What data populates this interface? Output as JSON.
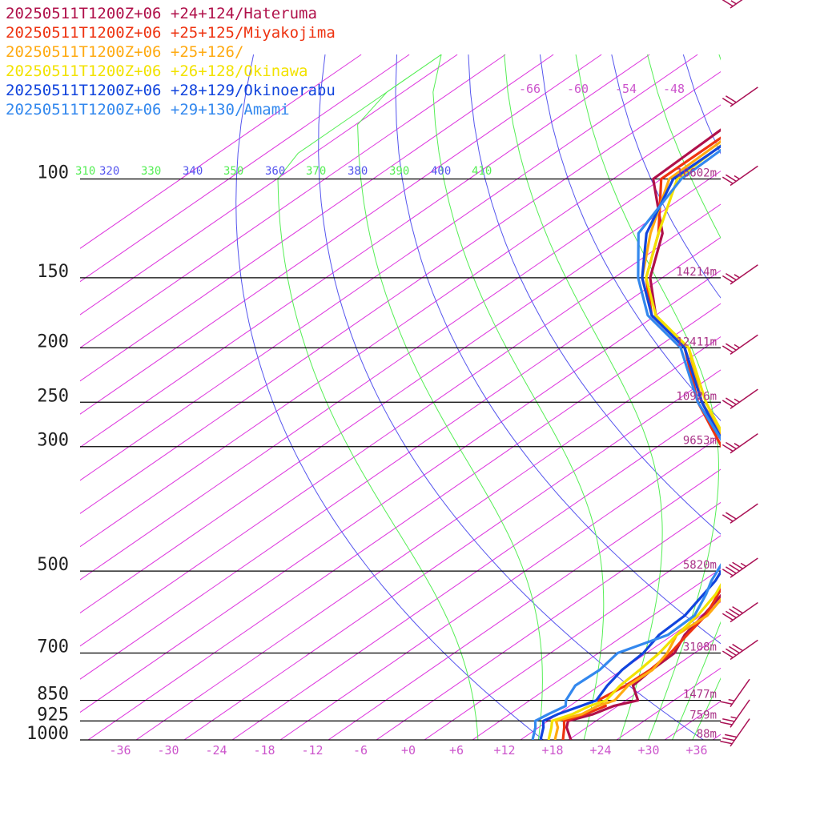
{
  "chart_data": {
    "type": "line",
    "title": "",
    "xlabel": "",
    "ylabel": "",
    "legend_placement": "top-left",
    "x_unit": "temperature (°C), skewed",
    "y_unit": "pressure (hPa), log scale",
    "pressure_levels": [
      100,
      150,
      200,
      250,
      300,
      500,
      700,
      850,
      925,
      1000
    ],
    "pressure_labels": [
      "100",
      "150",
      "200",
      "250",
      "300",
      "500",
      "700",
      "850",
      "925",
      "1000"
    ],
    "height_labels": [
      {
        "p": 100,
        "text": "16602m"
      },
      {
        "p": 150,
        "text": "14214m"
      },
      {
        "p": 200,
        "text": "12411m"
      },
      {
        "p": 250,
        "text": "10926m"
      },
      {
        "p": 300,
        "text": "9653m"
      },
      {
        "p": 500,
        "text": "5820m"
      },
      {
        "p": 700,
        "text": "3108m"
      },
      {
        "p": 850,
        "text": "1477m"
      },
      {
        "p": 925,
        "text": "759m"
      },
      {
        "p": 1000,
        "text": "88m"
      }
    ],
    "x_ticks": [
      -36,
      -30,
      -24,
      -18,
      -12,
      -6,
      0,
      6,
      12,
      18,
      24,
      30,
      36
    ],
    "x_tick_labels": [
      "-36",
      "-30",
      "-24",
      "-18",
      "-12",
      "-6",
      "+0",
      "+6",
      "+12",
      "+18",
      "+24",
      "+30",
      "+36"
    ],
    "upper_temp_labels": [
      "-66",
      "-60",
      "-54",
      "-48"
    ],
    "theta_labels": [
      "310",
      "320",
      "330",
      "340",
      "350",
      "360",
      "370",
      "380",
      "390",
      "400",
      "410"
    ],
    "colors": {
      "isotherm": "#dd33dd",
      "dry_adiabat": "#5555ee",
      "moist_adiabat": "#55ee55",
      "isobar": "#000000"
    },
    "series": [
      {
        "name": "20250511T1200Z+06 +24+124/Hateruma",
        "color": "#b0104a",
        "points": [
          [
            1000,
            20.3
          ],
          [
            950,
            17.5
          ],
          [
            925,
            16.5
          ],
          [
            900,
            18.4
          ],
          [
            870,
            19.5
          ],
          [
            850,
            21.5
          ],
          [
            800,
            18.2
          ],
          [
            750,
            17.7
          ],
          [
            700,
            17.5
          ],
          [
            650,
            15.5
          ],
          [
            600,
            14.3
          ],
          [
            550,
            12.8
          ],
          [
            520,
            11.2
          ],
          [
            500,
            10.5
          ],
          [
            450,
            7.0
          ],
          [
            400,
            2.0
          ],
          [
            350,
            -6.0
          ],
          [
            300,
            -13.5
          ],
          [
            250,
            -24.5
          ],
          [
            200,
            -36.5
          ],
          [
            175,
            -46.0
          ],
          [
            150,
            -53.5
          ],
          [
            125,
            -60.0
          ],
          [
            100,
            -71.0
          ],
          [
            80,
            -71.5
          ],
          [
            70,
            -72.0
          ]
        ]
      },
      {
        "name": "20250511T1200Z+06 +25+125/Miyakojima",
        "color": "#ee3311",
        "points": [
          [
            1000,
            19.3
          ],
          [
            950,
            17.2
          ],
          [
            925,
            16.0
          ],
          [
            900,
            17.4
          ],
          [
            870,
            18.5
          ],
          [
            850,
            16.5
          ],
          [
            800,
            17.3
          ],
          [
            750,
            17.5
          ],
          [
            700,
            17.0
          ],
          [
            650,
            15.8
          ],
          [
            600,
            14.6
          ],
          [
            550,
            12.3
          ],
          [
            520,
            10.8
          ],
          [
            500,
            9.6
          ],
          [
            450,
            6.5
          ],
          [
            400,
            1.5
          ],
          [
            350,
            -6.0
          ],
          [
            300,
            -14.0
          ],
          [
            250,
            -25.0
          ],
          [
            200,
            -36.5
          ],
          [
            175,
            -46.5
          ],
          [
            150,
            -54.0
          ],
          [
            125,
            -60.5
          ],
          [
            100,
            -70.0
          ],
          [
            80,
            -70.0
          ],
          [
            70,
            -70.0
          ]
        ]
      },
      {
        "name": "20250511T1200Z+06 +25+126/",
        "color": "#ffaa11",
        "points": [
          [
            1000,
            18.3
          ],
          [
            950,
            16.4
          ],
          [
            925,
            15.0
          ],
          [
            900,
            17.0
          ],
          [
            870,
            17.5
          ],
          [
            850,
            18.6
          ],
          [
            800,
            17.6
          ],
          [
            750,
            17.8
          ],
          [
            700,
            16.6
          ],
          [
            650,
            14.5
          ],
          [
            600,
            14.8
          ],
          [
            550,
            13.2
          ],
          [
            520,
            11.0
          ],
          [
            500,
            10.0
          ],
          [
            450,
            7.3
          ],
          [
            400,
            2.8
          ],
          [
            350,
            -5.0
          ],
          [
            300,
            -13.0
          ],
          [
            250,
            -24.5
          ],
          [
            200,
            -36.0
          ],
          [
            175,
            -46.5
          ],
          [
            150,
            -54.5
          ],
          [
            125,
            -61.5
          ],
          [
            100,
            -69.0
          ],
          [
            80,
            -69.5
          ],
          [
            70,
            -70.0
          ]
        ]
      },
      {
        "name": "20250511T1200Z+06 +26+128/Okinawa",
        "color": "#f2e200",
        "points": [
          [
            1000,
            17.5
          ],
          [
            950,
            15.6
          ],
          [
            925,
            14.5
          ],
          [
            900,
            15.8
          ],
          [
            870,
            16.5
          ],
          [
            850,
            17.5
          ],
          [
            800,
            16.6
          ],
          [
            750,
            16.2
          ],
          [
            700,
            15.6
          ],
          [
            650,
            14.5
          ],
          [
            600,
            13.6
          ],
          [
            550,
            12.0
          ],
          [
            520,
            10.5
          ],
          [
            500,
            9.5
          ],
          [
            450,
            6.5
          ],
          [
            400,
            2.0
          ],
          [
            350,
            -5.5
          ],
          [
            300,
            -13.0
          ],
          [
            250,
            -24.0
          ],
          [
            200,
            -36.0
          ],
          [
            175,
            -46.0
          ],
          [
            150,
            -54.0
          ],
          [
            125,
            -60.5
          ],
          [
            100,
            -68.0
          ],
          [
            80,
            -69.0
          ],
          [
            70,
            -70.0
          ]
        ]
      },
      {
        "name": "20250511T1200Z+06 +28+129/Okinoerabu",
        "color": "#1144dd",
        "points": [
          [
            1000,
            16.5
          ],
          [
            950,
            14.6
          ],
          [
            925,
            13.4
          ],
          [
            900,
            14.0
          ],
          [
            870,
            15.4
          ],
          [
            850,
            16.3
          ],
          [
            800,
            15.0
          ],
          [
            750,
            14.0
          ],
          [
            700,
            13.6
          ],
          [
            650,
            12.3
          ],
          [
            600,
            12.0
          ],
          [
            550,
            10.5
          ],
          [
            520,
            9.5
          ],
          [
            500,
            8.5
          ],
          [
            450,
            5.8
          ],
          [
            400,
            1.5
          ],
          [
            350,
            -6.5
          ],
          [
            300,
            -13.5
          ],
          [
            250,
            -24.5
          ],
          [
            200,
            -36.5
          ],
          [
            175,
            -46.5
          ],
          [
            150,
            -54.5
          ],
          [
            125,
            -62.0
          ],
          [
            100,
            -68.5
          ],
          [
            80,
            -68.5
          ],
          [
            70,
            -68.5
          ]
        ]
      },
      {
        "name": "20250511T1200Z+06 +29+130/Amami",
        "color": "#3388ee",
        "points": [
          [
            1000,
            15.5
          ],
          [
            950,
            13.6
          ],
          [
            925,
            12.4
          ],
          [
            900,
            12.8
          ],
          [
            870,
            13.5
          ],
          [
            850,
            12.5
          ],
          [
            800,
            11.0
          ],
          [
            750,
            11.2
          ],
          [
            700,
            10.4
          ],
          [
            650,
            13.4
          ],
          [
            600,
            13.2
          ],
          [
            550,
            10.8
          ],
          [
            520,
            9.0
          ],
          [
            500,
            8.0
          ],
          [
            450,
            5.3
          ],
          [
            400,
            1.0
          ],
          [
            350,
            -6.0
          ],
          [
            300,
            -13.5
          ],
          [
            250,
            -25.0
          ],
          [
            200,
            -37.0
          ],
          [
            175,
            -47.0
          ],
          [
            150,
            -55.0
          ],
          [
            125,
            -63.0
          ],
          [
            100,
            -67.5
          ],
          [
            80,
            -68.0
          ],
          [
            70,
            -68.0
          ]
        ]
      }
    ],
    "wind_barbs": [
      {
        "p": 60,
        "speed_kt": 15
      },
      {
        "p": 80,
        "speed_kt": 20
      },
      {
        "p": 100,
        "speed_kt": 25
      },
      {
        "p": 150,
        "speed_kt": 25
      },
      {
        "p": 200,
        "speed_kt": 25
      },
      {
        "p": 250,
        "speed_kt": 25
      },
      {
        "p": 300,
        "speed_kt": 25
      },
      {
        "p": 400,
        "speed_kt": 20
      },
      {
        "p": 500,
        "speed_kt": 45
      },
      {
        "p": 600,
        "speed_kt": 40
      },
      {
        "p": 700,
        "speed_kt": 40
      },
      {
        "p": 850,
        "speed_kt": 15
      },
      {
        "p": 925,
        "speed_kt": 25
      },
      {
        "p": 1000,
        "speed_kt": 30
      }
    ]
  }
}
